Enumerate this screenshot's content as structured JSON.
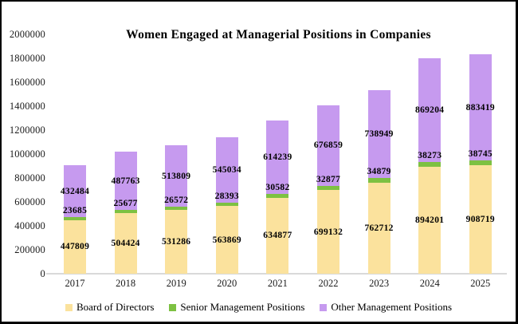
{
  "chart_data": {
    "type": "bar",
    "stacked": true,
    "title": "Women Engaged at Managerial Positions in Companies",
    "categories": [
      "2017",
      "2018",
      "2019",
      "2020",
      "2021",
      "2022",
      "2023",
      "2024",
      "2025"
    ],
    "series": [
      {
        "name": "Board of Directors",
        "color": "#FBE29D",
        "values": [
          447809,
          504424,
          531286,
          563869,
          634877,
          699132,
          762712,
          894201,
          908719
        ]
      },
      {
        "name": "Senior Management Positions",
        "color": "#7DC142",
        "values": [
          23685,
          25677,
          26572,
          28393,
          30582,
          32877,
          34879,
          38273,
          38745
        ]
      },
      {
        "name": "Other Management Positions",
        "color": "#C69AEF",
        "values": [
          432484,
          487763,
          513809,
          545034,
          614239,
          676859,
          738949,
          869204,
          883419
        ]
      }
    ],
    "xlabel": "",
    "ylabel": "",
    "ylim": [
      0,
      2000000
    ],
    "y_ticks": [
      0,
      200000,
      400000,
      600000,
      800000,
      1000000,
      1200000,
      1400000,
      1600000,
      1800000,
      2000000
    ],
    "grid": false,
    "legend_position": "bottom",
    "data_labels": true,
    "axis_line_color": "#D9D9D9",
    "frame_border_color": "#000000"
  }
}
